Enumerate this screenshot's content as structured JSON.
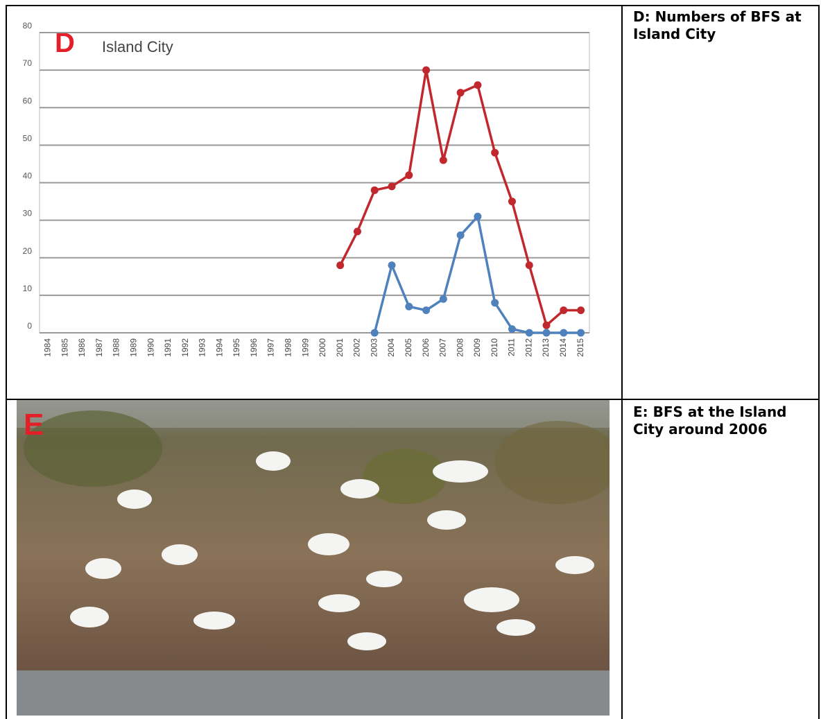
{
  "table": {
    "rows": [
      [
        "D: Numbers of BFS at Island City"
      ],
      [
        "E: BFS at the Island City around 2006"
      ]
    ]
  },
  "photo": {
    "label": "E"
  },
  "chart_data": {
    "type": "line",
    "panel_label": "D",
    "subtitle": "Island City",
    "categories": [
      "1984",
      "1985",
      "1986",
      "1987",
      "1988",
      "1989",
      "1990",
      "1991",
      "1992",
      "1993",
      "1994",
      "1995",
      "1996",
      "1997",
      "1998",
      "1999",
      "2000",
      "2001",
      "2002",
      "2003",
      "2004",
      "2005",
      "2006",
      "2007",
      "2008",
      "2009",
      "2010",
      "2011",
      "2012",
      "2013",
      "2014",
      "2015"
    ],
    "series": [
      {
        "color": "#c0282d",
        "values": [
          null,
          null,
          null,
          null,
          null,
          null,
          null,
          null,
          null,
          null,
          null,
          null,
          null,
          null,
          null,
          null,
          null,
          18,
          27,
          38,
          39,
          42,
          70,
          46,
          64,
          66,
          48,
          35,
          18,
          2,
          6,
          6
        ]
      },
      {
        "color": "#4f81bd",
        "values": [
          null,
          null,
          null,
          null,
          null,
          null,
          null,
          null,
          null,
          null,
          null,
          null,
          null,
          null,
          null,
          null,
          null,
          null,
          null,
          0,
          18,
          7,
          6,
          9,
          26,
          31,
          8,
          1,
          0,
          0,
          0,
          0
        ]
      }
    ],
    "ylim": [
      0,
      80
    ],
    "yticks": [
      0,
      10,
      20,
      30,
      40,
      50,
      60,
      70,
      80
    ],
    "grid": true
  }
}
